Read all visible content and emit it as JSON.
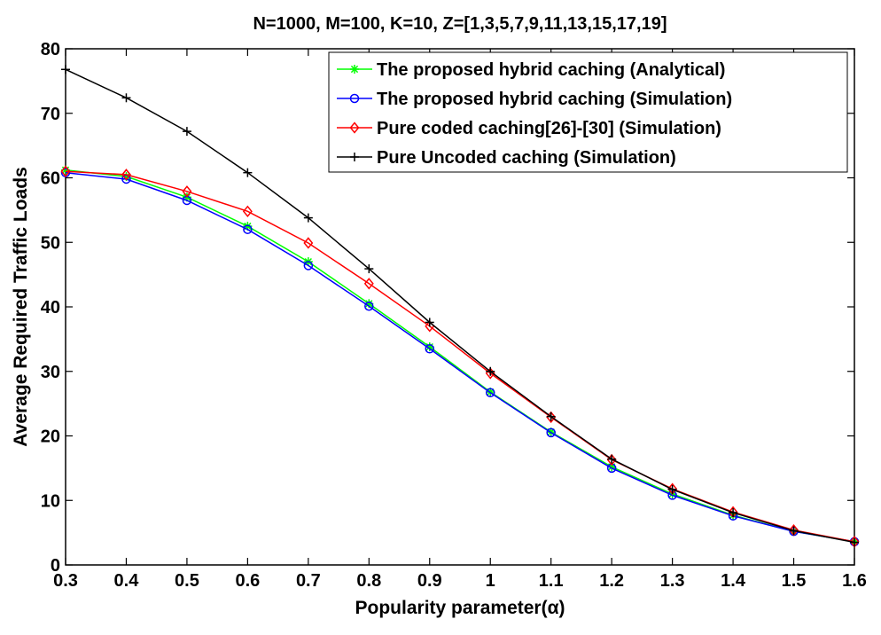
{
  "chart_data": {
    "type": "line",
    "title": "N=1000, M=100, K=10, Z=[1,3,5,7,9,11,13,15,17,19]",
    "xlabel": "Popularity parameter(α)",
    "ylabel": "Average Required Traffic Loads",
    "xlim": [
      0.3,
      1.6
    ],
    "ylim": [
      0,
      80
    ],
    "xticks": [
      "0.3",
      "0.4",
      "0.5",
      "0.6",
      "0.7",
      "0.8",
      "0.9",
      "1",
      "1.1",
      "1.2",
      "1.3",
      "1.4",
      "1.5",
      "1.6"
    ],
    "yticks": [
      "0",
      "10",
      "20",
      "30",
      "40",
      "50",
      "60",
      "70",
      "80"
    ],
    "grid": false,
    "legend_position": "top-right",
    "x": [
      0.3,
      0.4,
      0.5,
      0.6,
      0.7,
      0.8,
      0.9,
      1.0,
      1.1,
      1.2,
      1.3,
      1.4,
      1.5,
      1.6
    ],
    "series": [
      {
        "name": "The proposed hybrid caching (Analytical)",
        "color": "#00ff00",
        "marker": "asterisk",
        "values": [
          61.2,
          60.2,
          57.0,
          52.5,
          47.0,
          40.5,
          33.8,
          26.8,
          20.6,
          15.2,
          11.0,
          7.7,
          5.2,
          3.6
        ]
      },
      {
        "name": "The proposed hybrid caching (Simulation)",
        "color": "#0000ff",
        "marker": "circle",
        "values": [
          60.8,
          59.8,
          56.5,
          52.0,
          46.4,
          40.1,
          33.5,
          26.7,
          20.5,
          15.0,
          10.8,
          7.6,
          5.2,
          3.6
        ]
      },
      {
        "name": "Pure coded caching[26]-[30] (Simulation)",
        "color": "#ff0000",
        "marker": "diamond",
        "values": [
          61.0,
          60.5,
          57.9,
          54.8,
          49.9,
          43.6,
          37.0,
          29.7,
          22.9,
          16.3,
          11.8,
          8.2,
          5.4,
          3.6
        ]
      },
      {
        "name": "Pure Uncoded caching (Simulation)",
        "color": "#000000",
        "marker": "plus",
        "values": [
          76.8,
          72.4,
          67.2,
          60.8,
          53.8,
          45.9,
          37.6,
          30.0,
          23.0,
          16.4,
          11.7,
          8.1,
          5.3,
          3.5
        ]
      }
    ]
  }
}
